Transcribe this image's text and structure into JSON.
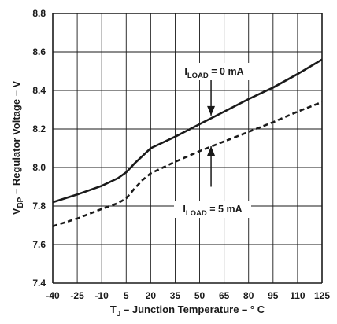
{
  "chart_data": {
    "type": "line",
    "xlabel_main": "T",
    "xlabel_sub": "J",
    "xlabel_rest": " – Junction Temperature – ° C",
    "ylabel_main": "V",
    "ylabel_sub": "BP",
    "ylabel_rest": " – Regulator Voltage – V",
    "xlim": [
      -40,
      125
    ],
    "ylim": [
      7.4,
      8.8
    ],
    "x_ticks": [
      "-40",
      "-25",
      "-10",
      "5",
      "20",
      "35",
      "50",
      "65",
      "80",
      "95",
      "110",
      "125"
    ],
    "y_ticks": [
      "7.4",
      "7.6",
      "7.8",
      "8.0",
      "8.2",
      "8.4",
      "8.6",
      "8.8"
    ],
    "grid": true,
    "series": [
      {
        "name": "I_LOAD = 0 mA",
        "style": "solid",
        "x": [
          -40,
          -25,
          -10,
          0,
          5,
          10,
          15,
          20,
          35,
          50,
          65,
          80,
          95,
          110,
          125
        ],
        "y": [
          7.82,
          7.86,
          7.905,
          7.945,
          7.975,
          8.02,
          8.06,
          8.1,
          8.16,
          8.225,
          8.29,
          8.355,
          8.415,
          8.485,
          8.56
        ]
      },
      {
        "name": "I_LOAD = 5 mA",
        "style": "dashed",
        "x": [
          -40,
          -25,
          -10,
          0,
          5,
          10,
          15,
          20,
          35,
          50,
          65,
          80,
          95,
          110,
          125
        ],
        "y": [
          7.695,
          7.735,
          7.785,
          7.815,
          7.84,
          7.89,
          7.935,
          7.97,
          8.03,
          8.085,
          8.135,
          8.185,
          8.235,
          8.29,
          8.34
        ]
      }
    ],
    "annotations": [
      {
        "main": "I",
        "sub": "LOAD",
        "rest": " = 0 mA"
      },
      {
        "main": "I",
        "sub": "LOAD",
        "rest": " = 5 mA"
      }
    ],
    "colors": {
      "line": "#1a1a1a",
      "grid": "#1a1a1a",
      "background": "#ffffff"
    }
  }
}
